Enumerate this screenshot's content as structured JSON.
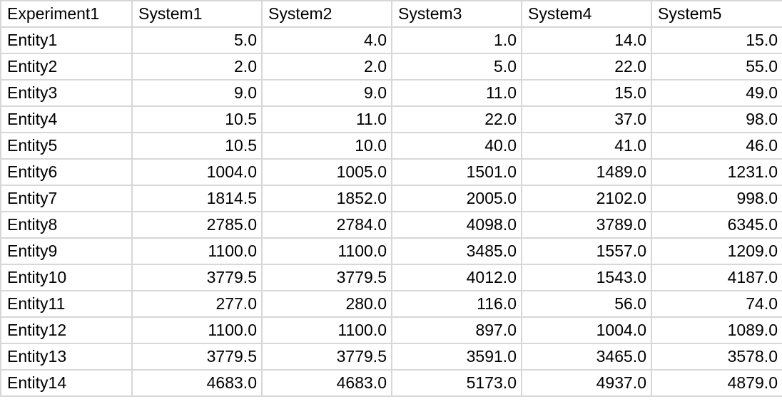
{
  "sheet": {
    "headers": [
      "Experiment1",
      "System1",
      "System2",
      "System3",
      "System4",
      "System5"
    ],
    "rows": [
      {
        "label": "Entity1",
        "values": [
          "5.0",
          "4.0",
          "1.0",
          "14.0",
          "15.0"
        ]
      },
      {
        "label": "Entity2",
        "values": [
          "2.0",
          "2.0",
          "5.0",
          "22.0",
          "55.0"
        ]
      },
      {
        "label": "Entity3",
        "values": [
          "9.0",
          "9.0",
          "11.0",
          "15.0",
          "49.0"
        ]
      },
      {
        "label": "Entity4",
        "values": [
          "10.5",
          "11.0",
          "22.0",
          "37.0",
          "98.0"
        ]
      },
      {
        "label": "Entity5",
        "values": [
          "10.5",
          "10.0",
          "40.0",
          "41.0",
          "46.0"
        ]
      },
      {
        "label": "Entity6",
        "values": [
          "1004.0",
          "1005.0",
          "1501.0",
          "1489.0",
          "1231.0"
        ]
      },
      {
        "label": "Entity7",
        "values": [
          "1814.5",
          "1852.0",
          "2005.0",
          "2102.0",
          "998.0"
        ]
      },
      {
        "label": "Entity8",
        "values": [
          "2785.0",
          "2784.0",
          "4098.0",
          "3789.0",
          "6345.0"
        ]
      },
      {
        "label": "Entity9",
        "values": [
          "1100.0",
          "1100.0",
          "3485.0",
          "1557.0",
          "1209.0"
        ]
      },
      {
        "label": "Entity10",
        "values": [
          "3779.5",
          "3779.5",
          "4012.0",
          "1543.0",
          "4187.0"
        ]
      },
      {
        "label": "Entity11",
        "values": [
          "277.0",
          "280.0",
          "116.0",
          "56.0",
          "74.0"
        ]
      },
      {
        "label": "Entity12",
        "values": [
          "1100.0",
          "1100.0",
          "897.0",
          "1004.0",
          "1089.0"
        ]
      },
      {
        "label": "Entity13",
        "values": [
          "3779.5",
          "3779.5",
          "3591.0",
          "3465.0",
          "3578.0"
        ]
      },
      {
        "label": "Entity14",
        "values": [
          "4683.0",
          "4683.0",
          "5173.0",
          "4937.0",
          "4879.0"
        ]
      }
    ]
  },
  "colors": {
    "gridline": "#d7d7d7",
    "text": "#000000",
    "background": "#ffffff"
  }
}
